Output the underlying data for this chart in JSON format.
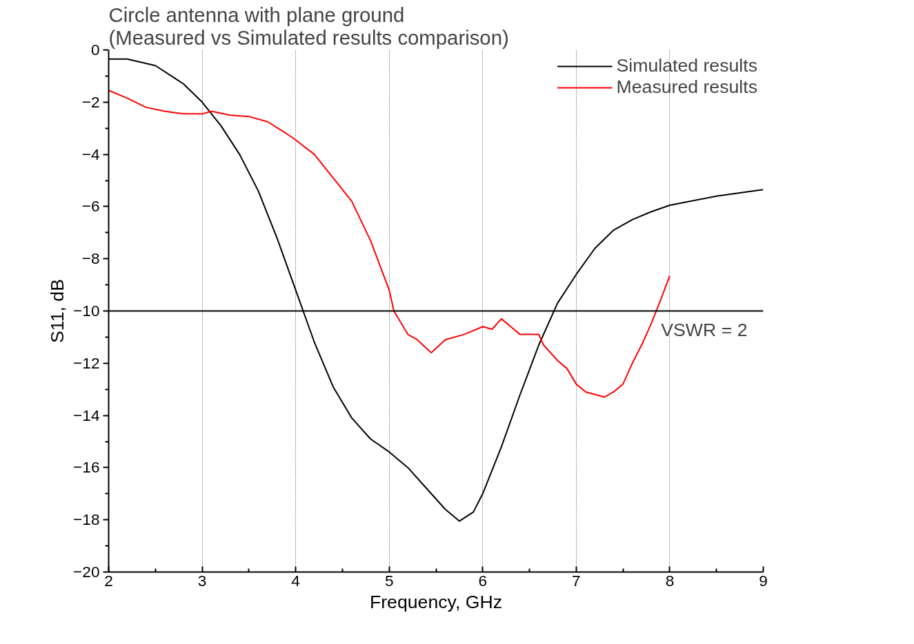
{
  "chart_data": {
    "type": "line",
    "title": "Circle antenna with plane ground\n(Measured vs Simulated results comparison)",
    "xlabel": "Frequency, GHz",
    "ylabel": "S11, dB",
    "xlim": [
      2,
      9
    ],
    "xticks": [
      2,
      3,
      4,
      5,
      6,
      7,
      8,
      9
    ],
    "ylim": [
      -20,
      0
    ],
    "yticks": [
      -20,
      -18,
      -16,
      -14,
      -12,
      -10,
      -8,
      -6,
      -4,
      -2,
      0
    ],
    "grid": "x",
    "legend": "top right",
    "line_style": "solid",
    "marker": "none",
    "ref_lines": [
      {
        "axis": "y",
        "value": -10,
        "color": "#000000"
      }
    ],
    "annotations": [
      "VSWR = 2"
    ],
    "series": [
      {
        "name": "Simulated results",
        "color": "#000000",
        "x": [
          2,
          2.2,
          2.5,
          2.8,
          3.0,
          3.2,
          3.4,
          3.6,
          3.8,
          4.0,
          4.2,
          4.4,
          4.6,
          4.8,
          5.0,
          5.2,
          5.4,
          5.6,
          5.75,
          5.9,
          6.0,
          6.2,
          6.4,
          6.6,
          6.8,
          7.0,
          7.2,
          7.4,
          7.6,
          7.8,
          8.0,
          8.5,
          9.0
        ],
        "values": [
          -0.35,
          -0.35,
          -0.6,
          -1.3,
          -2.0,
          -2.9,
          -4.0,
          -5.4,
          -7.2,
          -9.2,
          -11.2,
          -12.9,
          -14.1,
          -14.9,
          -15.4,
          -16.0,
          -16.8,
          -17.6,
          -18.05,
          -17.7,
          -17.0,
          -15.2,
          -13.2,
          -11.3,
          -9.7,
          -8.6,
          -7.6,
          -6.9,
          -6.5,
          -6.2,
          -5.95,
          -5.6,
          -5.35
        ]
      },
      {
        "name": "Measured results",
        "color": "#ff0000",
        "x": [
          2.0,
          2.2,
          2.4,
          2.6,
          2.8,
          3.0,
          3.1,
          3.3,
          3.5,
          3.7,
          3.9,
          4.0,
          4.2,
          4.4,
          4.6,
          4.8,
          5.0,
          5.05,
          5.2,
          5.3,
          5.45,
          5.6,
          5.8,
          6.0,
          6.1,
          6.2,
          6.3,
          6.4,
          6.6,
          6.65,
          6.8,
          6.9,
          7.0,
          7.1,
          7.2,
          7.3,
          7.4,
          7.5,
          7.6,
          7.7,
          7.8,
          7.9,
          8.0
        ],
        "values": [
          -1.55,
          -1.85,
          -2.2,
          -2.35,
          -2.45,
          -2.45,
          -2.35,
          -2.5,
          -2.55,
          -2.75,
          -3.2,
          -3.45,
          -4.0,
          -4.9,
          -5.8,
          -7.3,
          -9.2,
          -10.0,
          -10.9,
          -11.1,
          -11.6,
          -11.1,
          -10.9,
          -10.6,
          -10.7,
          -10.3,
          -10.6,
          -10.9,
          -10.9,
          -11.3,
          -11.9,
          -12.2,
          -12.8,
          -13.1,
          -13.2,
          -13.3,
          -13.1,
          -12.8,
          -12.0,
          -11.3,
          -10.5,
          -9.6,
          -8.65
        ]
      }
    ]
  }
}
